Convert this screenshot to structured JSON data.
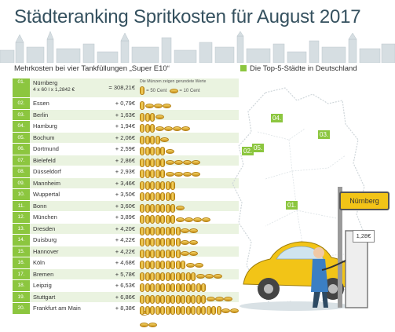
{
  "title": "Städteranking Spritkosten für August 2017",
  "subtitle": "Mehrkosten bei vier Tankfüllungen „Super E10“",
  "map_legend": "Die Top-5-Städte in Deutschland",
  "coin_legend": {
    "line1": "Die Münzen zeigen gerundete Werte",
    "big": "= 50 Cent",
    "small": "= 10 Cent"
  },
  "first_row": {
    "rank": "01.",
    "city": "Nürnberg",
    "formula": "4 x 60 l x 1,2842 €",
    "value": "= 308,21€"
  },
  "rows": [
    {
      "rank": "02.",
      "city": "Essen",
      "value": "+ 0,79€"
    },
    {
      "rank": "03.",
      "city": "Berlin",
      "value": "+ 1,63€"
    },
    {
      "rank": "04.",
      "city": "Hamburg",
      "value": "+ 1,94€"
    },
    {
      "rank": "05.",
      "city": "Bochum",
      "value": "+ 2,06€"
    },
    {
      "rank": "06.",
      "city": "Dortmund",
      "value": "+ 2,59€"
    },
    {
      "rank": "07.",
      "city": "Bielefeld",
      "value": "+ 2,86€"
    },
    {
      "rank": "08.",
      "city": "Düsseldorf",
      "value": "+ 2,93€"
    },
    {
      "rank": "09.",
      "city": "Mannheim",
      "value": "+ 3,46€"
    },
    {
      "rank": "10.",
      "city": "Wuppertal",
      "value": "+ 3,50€"
    },
    {
      "rank": "11.",
      "city": "Bonn",
      "value": "+ 3,60€"
    },
    {
      "rank": "12.",
      "city": "München",
      "value": "+ 3,89€"
    },
    {
      "rank": "13.",
      "city": "Dresden",
      "value": "+ 4,20€"
    },
    {
      "rank": "14.",
      "city": "Duisburg",
      "value": "+ 4,22€"
    },
    {
      "rank": "15.",
      "city": "Hannover",
      "value": "+ 4,22€"
    },
    {
      "rank": "16.",
      "city": "Köln",
      "value": "+ 4,68€"
    },
    {
      "rank": "17.",
      "city": "Bremen",
      "value": "+ 5,78€"
    },
    {
      "rank": "18.",
      "city": "Leipzig",
      "value": "+ 6,53€"
    },
    {
      "rank": "19.",
      "city": "Stuttgart",
      "value": "+ 6,86€"
    },
    {
      "rank": "20.",
      "city": "Frankfurt am Main",
      "value": "+ 8,38€"
    }
  ],
  "map_labels": [
    "04.",
    "03.",
    "02.",
    "05.",
    "01."
  ],
  "pump_sign": "Nürnberg",
  "pump_price": "1,28€",
  "colors": {
    "accent": "#8cc63f",
    "title": "#35515f",
    "row_alt": "#eaf3e0",
    "coin": "#e8b830"
  }
}
